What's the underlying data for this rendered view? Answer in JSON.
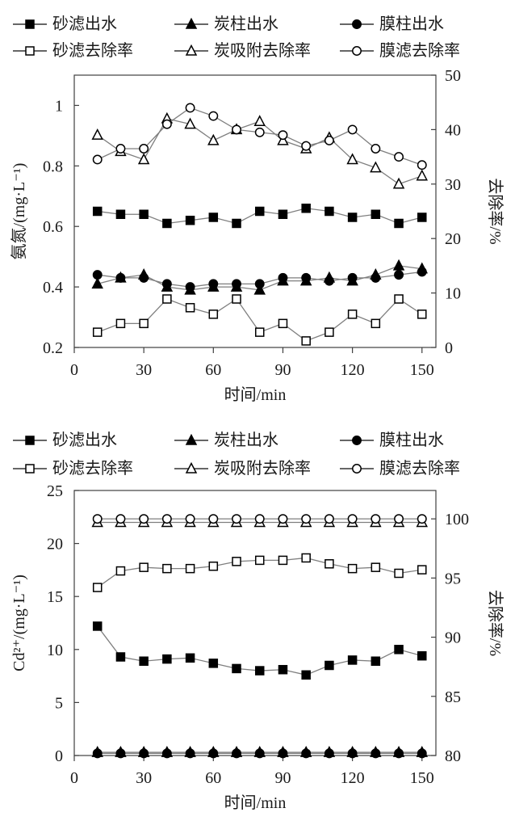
{
  "page": {
    "background": "#ffffff"
  },
  "colors": {
    "line": "#7f7f7f",
    "marker_fill": "#000000",
    "marker_open_fill": "#ffffff",
    "axis": "#3f3f3f",
    "text": "#1a1a1a",
    "legend_line": "#333333"
  },
  "chart_data": [
    {
      "type": "line",
      "title": "",
      "x_axis": {
        "label": "时间/min",
        "min": 0,
        "max": 156,
        "tick_values": [
          0,
          30,
          60,
          90,
          120,
          150
        ],
        "tick_labels": [
          "0",
          "30",
          "60",
          "90",
          "120",
          "150"
        ]
      },
      "left_axis": {
        "label": "氨氮/(mg·L⁻¹)",
        "min": 0.2,
        "max": 1.1,
        "tick_values": [
          0.2,
          0.4,
          0.6,
          0.8,
          1
        ],
        "tick_labels": [
          "0.2",
          "0.4",
          "0.6",
          "0.8",
          "1"
        ]
      },
      "right_axis": {
        "label": "去除率/%",
        "min": 0,
        "max": 50,
        "tick_values": [
          0,
          10,
          20,
          30,
          40,
          50
        ],
        "tick_labels": [
          "0",
          "10",
          "20",
          "30",
          "40",
          "50"
        ]
      },
      "grid": false,
      "legend_position": "top",
      "x": [
        10,
        20,
        30,
        40,
        50,
        60,
        70,
        80,
        90,
        100,
        110,
        120,
        130,
        140,
        150
      ],
      "series": [
        {
          "name": "砂滤出水",
          "marker": "filled-square",
          "axis": "left",
          "values": [
            0.65,
            0.64,
            0.64,
            0.61,
            0.62,
            0.63,
            0.61,
            0.65,
            0.64,
            0.66,
            0.65,
            0.63,
            0.64,
            0.61,
            0.63
          ]
        },
        {
          "name": "炭柱出水",
          "marker": "filled-triangle",
          "axis": "left",
          "values": [
            0.41,
            0.43,
            0.44,
            0.4,
            0.39,
            0.4,
            0.4,
            0.39,
            0.42,
            0.42,
            0.43,
            0.42,
            0.44,
            0.47,
            0.46
          ]
        },
        {
          "name": "膜柱出水",
          "marker": "filled-circle",
          "axis": "left",
          "values": [
            0.44,
            0.43,
            0.43,
            0.41,
            0.4,
            0.41,
            0.41,
            0.41,
            0.43,
            0.43,
            0.42,
            0.43,
            0.43,
            0.44,
            0.45
          ]
        },
        {
          "name": "砂滤去除率",
          "marker": "open-square",
          "axis": "right",
          "values": [
            2.8,
            4.4,
            4.4,
            8.9,
            7.3,
            6.1,
            8.9,
            2.8,
            4.4,
            1.2,
            2.8,
            6.1,
            4.4,
            8.9,
            6.1
          ]
        },
        {
          "name": "炭吸附去除率",
          "marker": "open-triangle",
          "axis": "right",
          "values": [
            39,
            36,
            34.5,
            42,
            41,
            38,
            40,
            41.5,
            38,
            36.5,
            38.5,
            34.5,
            33,
            30,
            31.5
          ]
        },
        {
          "name": "膜滤去除率",
          "marker": "open-circle",
          "axis": "right",
          "values": [
            34.5,
            36.5,
            36.5,
            41,
            44,
            42.5,
            40,
            39.5,
            39,
            37,
            38,
            40,
            36.5,
            35,
            33.5
          ]
        }
      ]
    },
    {
      "type": "line",
      "title": "",
      "x_axis": {
        "label": "时间/min",
        "min": 0,
        "max": 156,
        "tick_values": [
          0,
          30,
          60,
          90,
          120,
          150
        ],
        "tick_labels": [
          "0",
          "30",
          "60",
          "90",
          "120",
          "150"
        ]
      },
      "left_axis": {
        "label": "Cd²⁺/(mg·L⁻¹)",
        "min": 0,
        "max": 25,
        "tick_values": [
          0,
          5,
          10,
          15,
          20,
          25
        ],
        "tick_labels": [
          "0",
          "5",
          "10",
          "15",
          "20",
          "25"
        ]
      },
      "right_axis": {
        "label": "去除率/%",
        "min": 80,
        "max": 102.4,
        "tick_values": [
          80,
          85,
          90,
          95,
          100
        ],
        "tick_labels": [
          "80",
          "85",
          "90",
          "95",
          "100"
        ]
      },
      "grid": false,
      "legend_position": "top",
      "x": [
        10,
        20,
        30,
        40,
        50,
        60,
        70,
        80,
        90,
        100,
        110,
        120,
        130,
        140,
        150
      ],
      "series": [
        {
          "name": "砂滤出水",
          "marker": "filled-square",
          "axis": "left",
          "values": [
            12.2,
            9.3,
            8.9,
            9.1,
            9.2,
            8.7,
            8.2,
            8.0,
            8.1,
            7.6,
            8.5,
            9.0,
            8.9,
            10.0,
            9.4
          ]
        },
        {
          "name": "炭柱出水",
          "marker": "filled-triangle",
          "axis": "left",
          "values": [
            0.3,
            0.3,
            0.3,
            0.3,
            0.3,
            0.3,
            0.3,
            0.3,
            0.3,
            0.3,
            0.3,
            0.3,
            0.3,
            0.3,
            0.3
          ]
        },
        {
          "name": "膜柱出水",
          "marker": "filled-circle",
          "axis": "left",
          "values": [
            0.2,
            0.2,
            0.2,
            0.2,
            0.2,
            0.2,
            0.2,
            0.2,
            0.2,
            0.2,
            0.2,
            0.2,
            0.2,
            0.2,
            0.2
          ]
        },
        {
          "name": "砂滤去除率",
          "marker": "open-square",
          "axis": "right",
          "values": [
            94.2,
            95.6,
            95.9,
            95.8,
            95.8,
            96.0,
            96.4,
            96.5,
            96.5,
            96.7,
            96.2,
            95.8,
            95.9,
            95.4,
            95.7
          ]
        },
        {
          "name": "炭吸附去除率",
          "marker": "open-triangle",
          "axis": "right",
          "values": [
            99.7,
            99.7,
            99.7,
            99.7,
            99.7,
            99.7,
            99.7,
            99.7,
            99.7,
            99.7,
            99.7,
            99.7,
            99.7,
            99.7,
            99.7
          ]
        },
        {
          "name": "膜滤去除率",
          "marker": "open-circle",
          "axis": "right",
          "values": [
            100,
            100,
            100,
            100,
            100,
            100,
            100,
            100,
            100,
            100,
            100,
            100,
            100,
            100,
            100
          ]
        }
      ]
    }
  ]
}
